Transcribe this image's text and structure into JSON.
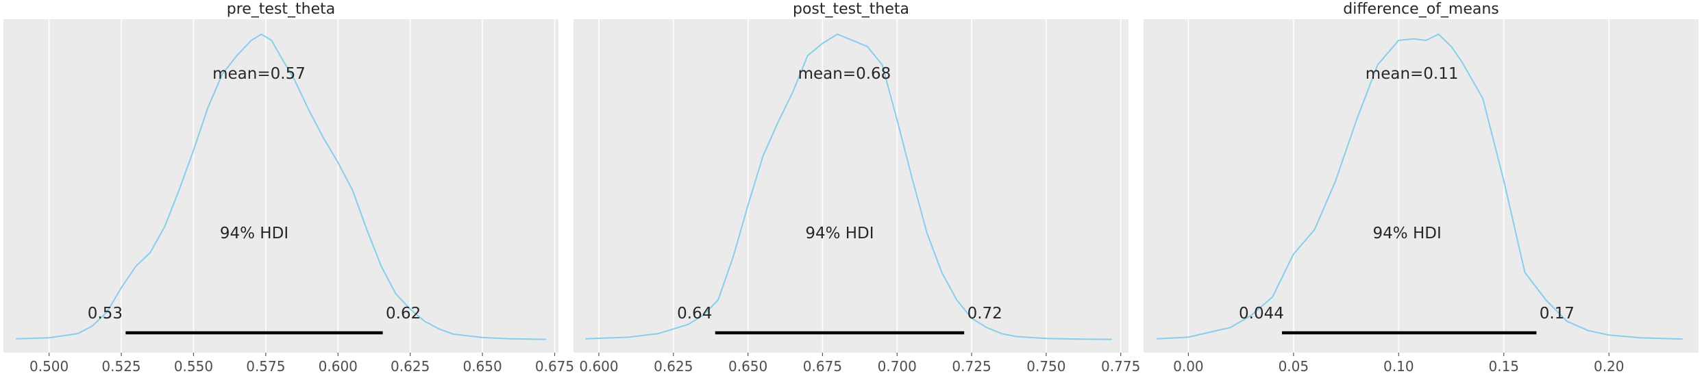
{
  "chart_data": [
    {
      "type": "area",
      "title": "pre_test_theta",
      "xlim": [
        0.4842,
        0.6763
      ],
      "ylim": [
        0,
        1.08
      ],
      "x_ticks": [
        0.5,
        0.525,
        0.55,
        0.575,
        0.6,
        0.625,
        0.65,
        0.675
      ],
      "x_tick_labels": [
        "0.500",
        "0.525",
        "0.550",
        "0.575",
        "0.600",
        "0.625",
        "0.650",
        "0.675"
      ],
      "density_x": [
        0.4885,
        0.5,
        0.51,
        0.515,
        0.52,
        0.525,
        0.53,
        0.535,
        0.54,
        0.545,
        0.55,
        0.555,
        0.56,
        0.565,
        0.57,
        0.5735,
        0.577,
        0.58,
        0.585,
        0.59,
        0.595,
        0.6,
        0.605,
        0.61,
        0.615,
        0.62,
        0.625,
        0.63,
        0.635,
        0.64,
        0.65,
        0.66,
        0.672
      ],
      "density_y": [
        0.003,
        0.006,
        0.02,
        0.045,
        0.09,
        0.17,
        0.24,
        0.285,
        0.37,
        0.49,
        0.62,
        0.76,
        0.87,
        0.93,
        0.98,
        1.0,
        0.98,
        0.93,
        0.85,
        0.75,
        0.66,
        0.58,
        0.49,
        0.36,
        0.24,
        0.15,
        0.1,
        0.06,
        0.035,
        0.018,
        0.007,
        0.003,
        0.001
      ],
      "mean_label": "mean=0.57",
      "hdi_label": "94% HDI",
      "hdi_low": 0.5265,
      "hdi_high": 0.6155,
      "hdi_low_label": "0.53",
      "hdi_high_label": "0.62",
      "color": "#87ceeb"
    },
    {
      "type": "area",
      "title": "post_test_theta",
      "xlim": [
        0.5915,
        0.7776
      ],
      "ylim": [
        0,
        1.08
      ],
      "x_ticks": [
        0.6,
        0.625,
        0.65,
        0.675,
        0.7,
        0.725,
        0.75,
        0.775
      ],
      "x_tick_labels": [
        "0.600",
        "0.625",
        "0.650",
        "0.675",
        "0.700",
        "0.725",
        "0.750",
        "0.775"
      ],
      "density_x": [
        0.5955,
        0.61,
        0.62,
        0.63,
        0.635,
        0.64,
        0.645,
        0.65,
        0.655,
        0.66,
        0.665,
        0.67,
        0.675,
        0.68,
        0.685,
        0.69,
        0.695,
        0.7,
        0.705,
        0.71,
        0.715,
        0.72,
        0.725,
        0.73,
        0.735,
        0.74,
        0.75,
        0.76,
        0.772
      ],
      "density_y": [
        0.003,
        0.008,
        0.02,
        0.05,
        0.08,
        0.13,
        0.27,
        0.44,
        0.6,
        0.71,
        0.81,
        0.93,
        0.97,
        1.0,
        0.98,
        0.96,
        0.9,
        0.72,
        0.53,
        0.35,
        0.22,
        0.13,
        0.07,
        0.04,
        0.02,
        0.01,
        0.004,
        0.002,
        0.001
      ],
      "mean_label": "mean=0.68",
      "hdi_label": "94% HDI",
      "hdi_low": 0.639,
      "hdi_high": 0.7225,
      "hdi_low_label": "0.64",
      "hdi_high_label": "0.72",
      "color": "#87ceeb"
    },
    {
      "type": "area",
      "title": "difference_of_means",
      "xlim": [
        -0.0213,
        0.2426
      ],
      "ylim": [
        0,
        1.08
      ],
      "x_ticks": [
        0.0,
        0.05,
        0.1,
        0.15,
        0.2
      ],
      "x_tick_labels": [
        "0.00",
        "0.05",
        "0.10",
        "0.15",
        "0.20"
      ],
      "density_x": [
        -0.015,
        0.0,
        0.02,
        0.03,
        0.04,
        0.05,
        0.06,
        0.07,
        0.08,
        0.09,
        0.1,
        0.107,
        0.113,
        0.119,
        0.125,
        0.13,
        0.14,
        0.15,
        0.16,
        0.17,
        0.18,
        0.19,
        0.2,
        0.215,
        0.235
      ],
      "density_y": [
        0.003,
        0.008,
        0.04,
        0.08,
        0.14,
        0.28,
        0.36,
        0.52,
        0.72,
        0.9,
        0.98,
        0.985,
        0.98,
        1.0,
        0.96,
        0.91,
        0.79,
        0.52,
        0.22,
        0.13,
        0.06,
        0.03,
        0.015,
        0.006,
        0.002
      ],
      "mean_label": "mean=0.11",
      "hdi_label": "94% HDI",
      "hdi_low": 0.0445,
      "hdi_high": 0.1655,
      "hdi_low_label": "0.044",
      "hdi_high_label": "0.17",
      "color": "#87ceeb"
    }
  ]
}
